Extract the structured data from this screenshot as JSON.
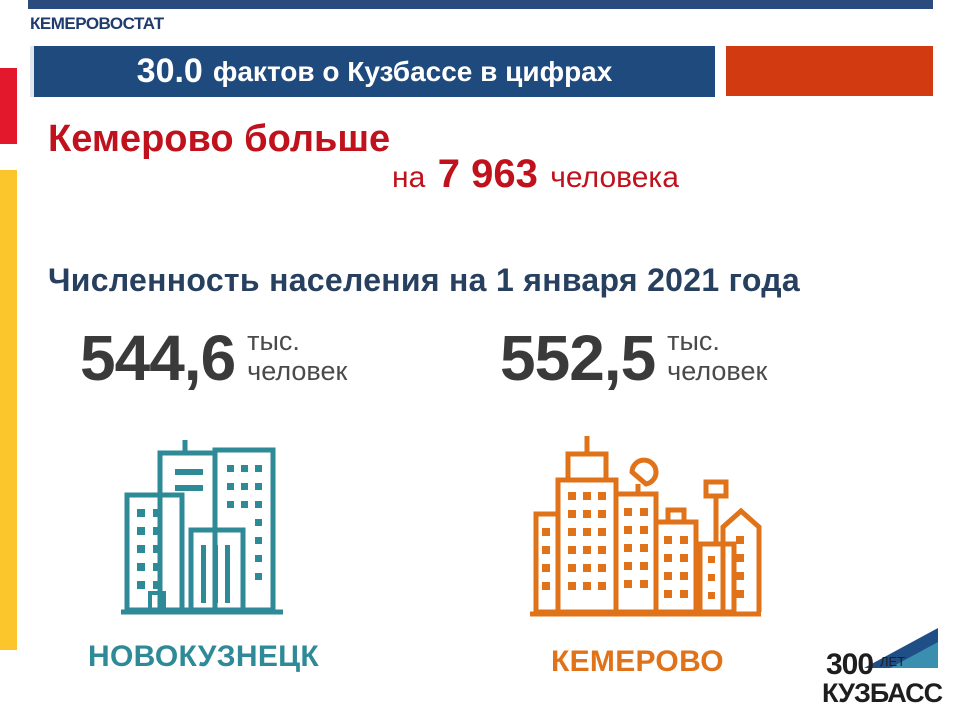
{
  "header": {
    "org": "КЕМЕРОВОСТАТ",
    "title_number": "30.0",
    "title_text": "фактов о Кузбассе в цифрах"
  },
  "headline": {
    "line1": "Кемерово больше",
    "prefix": "на",
    "difference": "7 963",
    "suffix": "человека"
  },
  "subtitle": "Численность населения на 1 января 2021 года",
  "cities": [
    {
      "name": "НОВОКУЗНЕЦК",
      "value": "544,6",
      "unit_line1": "тыс.",
      "unit_line2": "человек",
      "color": "#2e8a96"
    },
    {
      "name": "КЕМЕРОВО",
      "value": "552,5",
      "unit_line1": "тыс.",
      "unit_line2": "человек",
      "color": "#e0731a"
    }
  ],
  "logo": {
    "number": "300",
    "years": "ЛЕТ",
    "brand": "КУЗБАСС"
  },
  "colors": {
    "title_bg": "#1f4a7e",
    "accent_red": "#c0121c",
    "accent_orange": "#d23a12",
    "side_yellow": "#fbc52c"
  },
  "icons": [
    "buildings-teal-icon",
    "buildings-orange-icon",
    "kuzbass-300-logo"
  ]
}
